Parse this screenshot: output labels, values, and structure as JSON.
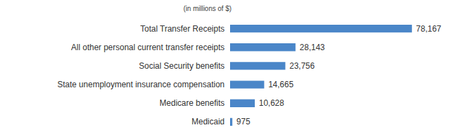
{
  "chart_data": {
    "type": "bar",
    "orientation": "horizontal",
    "title": "(in millions of $)",
    "categories": [
      "Total Transfer Receipts",
      "All other personal current transfer receipts",
      "Social Security benefits",
      "State unemployment insurance compensation",
      "Medicare benefits",
      "Medicaid"
    ],
    "values": [
      78167,
      28143,
      23756,
      14665,
      10628,
      975
    ],
    "value_labels": [
      "78,167",
      "28,143",
      "23,756",
      "14,665",
      "10,628",
      "975"
    ],
    "color": "#4a86c8",
    "xlim": [
      0,
      80000
    ],
    "xticks": [
      0,
      80000
    ],
    "grid": false,
    "data_labels": true,
    "tick_labels": "y"
  }
}
